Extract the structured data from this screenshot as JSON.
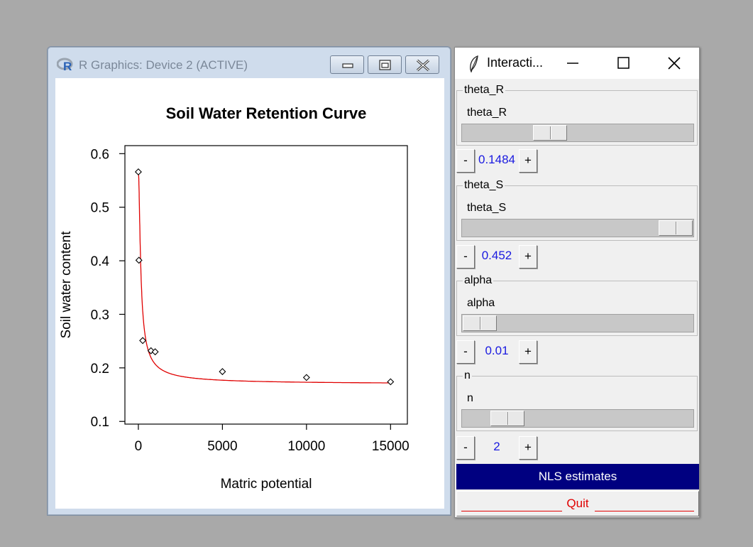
{
  "rgraphics": {
    "title": "R Graphics: Device 2 (ACTIVE)",
    "icon": "r-logo-icon",
    "buttons": [
      "minimize-icon",
      "restore-icon",
      "close-icon"
    ]
  },
  "chart_data": {
    "type": "scatter",
    "title": "Soil Water Retention Curve",
    "xlabel": "Matric potential",
    "ylabel": "Soil water content",
    "xlim": [
      -800,
      16000
    ],
    "ylim": [
      0.095,
      0.615
    ],
    "xticks": [
      0,
      5000,
      10000,
      15000
    ],
    "xtick_labels": [
      "0",
      "5000",
      "10000",
      "15000"
    ],
    "yticks": [
      0.1,
      0.2,
      0.3,
      0.4,
      0.5,
      0.6
    ],
    "ytick_labels": [
      "0.1",
      "0.2",
      "0.3",
      "0.4",
      "0.5",
      "0.6"
    ],
    "points": {
      "x": [
        0,
        33,
        260,
        750,
        1000,
        5000,
        10000,
        15000
      ],
      "y": [
        0.566,
        0.401,
        0.251,
        0.232,
        0.23,
        0.193,
        0.182,
        0.174
      ]
    },
    "fit_curve": {
      "color": "#e00000",
      "model": "van Genuchten",
      "theta_R": 0.1484,
      "theta_S": 0.452,
      "alpha": 0.01,
      "n": 2
    },
    "grid": false,
    "legend": "none"
  },
  "interaction": {
    "title": "Interacti...",
    "icon": "feather-icon",
    "controls": [
      {
        "group": "theta_R",
        "label": "theta_R",
        "value": "0.1484",
        "slider_fraction": 0.36
      },
      {
        "group": "theta_S",
        "label": "theta_S",
        "value": "0.452",
        "slider_fraction": 1.0
      },
      {
        "group": "alpha",
        "label": "alpha",
        "value": "0.01",
        "slider_fraction": 0.0
      },
      {
        "group": "n",
        "label": "n",
        "value": "2",
        "slider_fraction": 0.14
      }
    ],
    "minus_label": "-",
    "plus_label": "+",
    "nls_label": "NLS estimates",
    "quit_label": "Quit"
  },
  "colors": {
    "desktop": "#a9a9a9",
    "nls_bg": "#000080",
    "value_text": "#1a1ae0",
    "quit_text": "#e00000",
    "curve": "#e00000"
  }
}
